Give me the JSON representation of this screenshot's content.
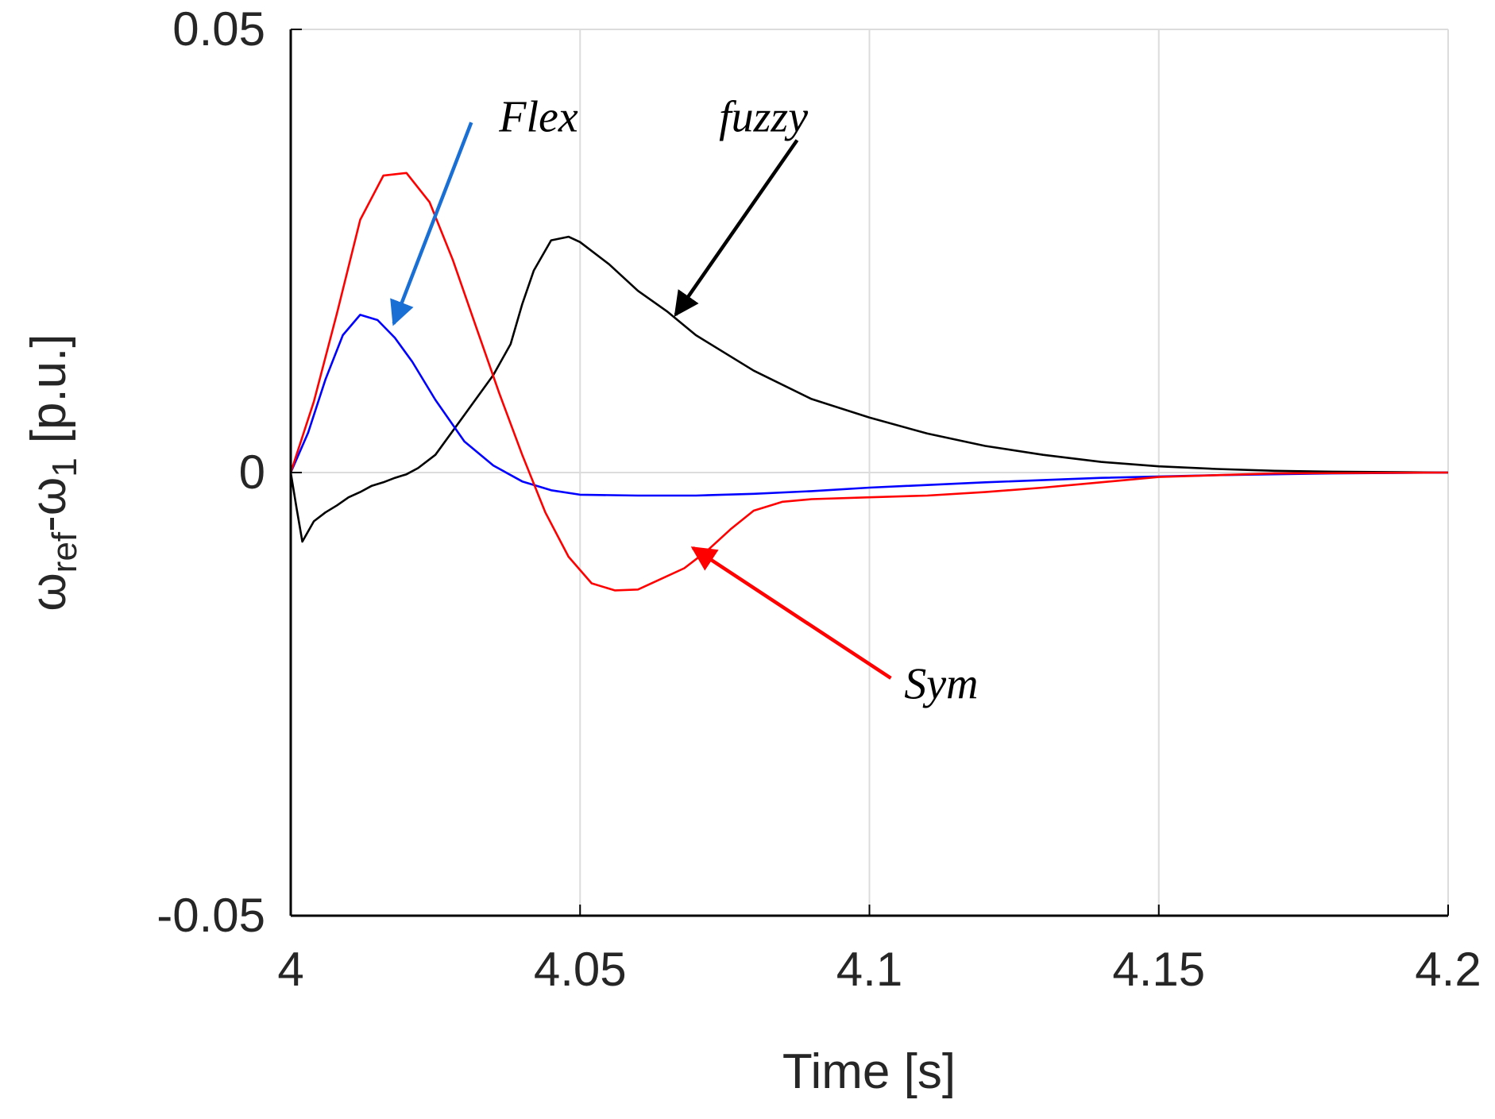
{
  "chart_data": {
    "type": "line",
    "title": "",
    "xlabel": "Time [s]",
    "ylabel": {
      "omega": "ω",
      "ref_sub": "ref",
      "dash": "-",
      "one_sub": "1",
      "unit": "[p.u.]"
    },
    "xlim": [
      4.0,
      4.2
    ],
    "ylim": [
      -0.05,
      0.05
    ],
    "xticks": [
      4.0,
      4.05,
      4.1,
      4.15,
      4.2
    ],
    "xtick_labels": [
      "4",
      "4.05",
      "4.1",
      "4.15",
      "4.2"
    ],
    "yticks": [
      -0.05,
      0,
      0.05
    ],
    "ytick_labels": [
      "-0.05",
      "0",
      "0.05"
    ],
    "grid": true,
    "series": [
      {
        "name": "fuzzy",
        "color": "#000000",
        "x": [
          4.0,
          4.001,
          4.002,
          4.004,
          4.006,
          4.008,
          4.01,
          4.012,
          4.014,
          4.016,
          4.018,
          4.02,
          4.022,
          4.025,
          4.03,
          4.035,
          4.038,
          4.04,
          4.042,
          4.045,
          4.048,
          4.05,
          4.055,
          4.06,
          4.065,
          4.07,
          4.08,
          4.09,
          4.1,
          4.11,
          4.12,
          4.13,
          4.14,
          4.15,
          4.16,
          4.17,
          4.18,
          4.2
        ],
        "y": [
          0.0,
          -0.004,
          -0.0078,
          -0.0055,
          -0.0045,
          -0.0037,
          -0.0028,
          -0.0022,
          -0.0015,
          -0.0011,
          -0.0006,
          -0.0002,
          0.0005,
          0.002,
          0.0065,
          0.011,
          0.0145,
          0.019,
          0.0228,
          0.0262,
          0.0266,
          0.026,
          0.0235,
          0.0205,
          0.0182,
          0.0155,
          0.0115,
          0.0083,
          0.0062,
          0.0044,
          0.003,
          0.002,
          0.0012,
          0.0007,
          0.0004,
          0.0002,
          0.0001,
          0.0
        ]
      },
      {
        "name": "Flex",
        "color": "#0000ff",
        "x": [
          4.0,
          4.003,
          4.006,
          4.009,
          4.012,
          4.015,
          4.018,
          4.021,
          4.025,
          4.03,
          4.035,
          4.04,
          4.045,
          4.05,
          4.06,
          4.07,
          4.08,
          4.09,
          4.1,
          4.12,
          4.14,
          4.16,
          4.18,
          4.2
        ],
        "y": [
          0.0,
          0.0045,
          0.0105,
          0.0155,
          0.0178,
          0.0172,
          0.0152,
          0.0125,
          0.0082,
          0.0035,
          0.0008,
          -0.001,
          -0.002,
          -0.0025,
          -0.0026,
          -0.0026,
          -0.0024,
          -0.0021,
          -0.0017,
          -0.0011,
          -0.0006,
          -0.0003,
          -0.0001,
          0.0
        ]
      },
      {
        "name": "Sym",
        "color": "#ff0000",
        "x": [
          4.0,
          4.004,
          4.008,
          4.012,
          4.016,
          4.02,
          4.024,
          4.028,
          4.032,
          4.036,
          4.04,
          4.044,
          4.048,
          4.052,
          4.056,
          4.06,
          4.064,
          4.068,
          4.072,
          4.076,
          4.08,
          4.085,
          4.09,
          4.1,
          4.11,
          4.12,
          4.13,
          4.14,
          4.15,
          4.17,
          4.2
        ],
        "y": [
          0.0,
          0.008,
          0.018,
          0.0285,
          0.0335,
          0.0338,
          0.0305,
          0.024,
          0.0165,
          0.009,
          0.002,
          -0.0045,
          -0.0095,
          -0.0125,
          -0.0133,
          -0.0132,
          -0.012,
          -0.0108,
          -0.0088,
          -0.0064,
          -0.0043,
          -0.0033,
          -0.003,
          -0.0028,
          -0.0026,
          -0.0022,
          -0.0017,
          -0.0011,
          -0.0005,
          -0.0001,
          0.0
        ]
      }
    ],
    "annotations": [
      {
        "text": "Flex",
        "color": "#1a6fd4",
        "text_at": [
          4.036,
          0.0385
        ],
        "arrow_from": [
          4.0312,
          0.0395
        ],
        "arrow_to": [
          4.0178,
          0.0168
        ]
      },
      {
        "text": "fuzzy",
        "color": "#000000",
        "text_at": [
          4.074,
          0.0385
        ],
        "arrow_from": [
          4.0875,
          0.0375
        ],
        "arrow_to": [
          4.0665,
          0.0178
        ]
      },
      {
        "text": "Sym",
        "color": "#ff0000",
        "text_at": [
          4.106,
          -0.0255
        ],
        "arrow_from": [
          4.1037,
          -0.0232
        ],
        "arrow_to": [
          4.0695,
          -0.0085
        ]
      }
    ]
  }
}
